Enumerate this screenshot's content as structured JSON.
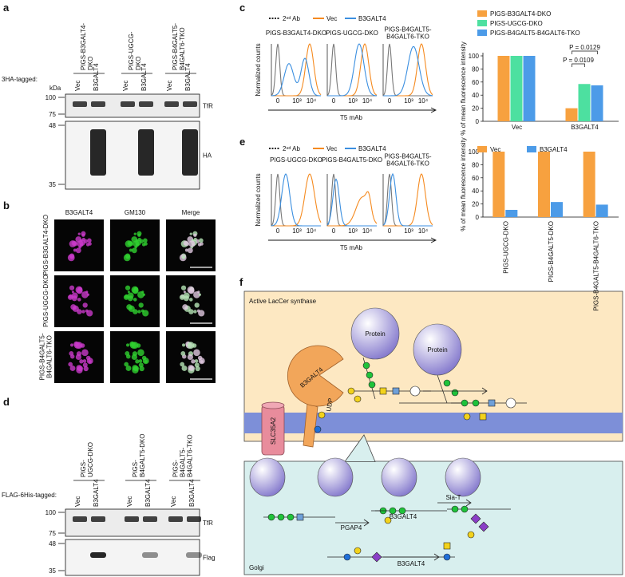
{
  "a": {
    "label": "a",
    "groups": [
      [
        "PIGS-B3GALT4-",
        "DKO"
      ],
      [
        "PIGS-UGCG-",
        "DKO"
      ],
      [
        "PIGS-B4GALT5-",
        "B4GALT6-TKO"
      ]
    ],
    "lanes": [
      "Vec",
      "B3GALT4",
      "Vec",
      "B3GALT4",
      "Vec",
      "B3GALT4"
    ],
    "tag": "3HA-tagged:",
    "unit": "kDa",
    "markers": [
      100,
      75,
      48,
      35
    ],
    "blots": [
      "TfR",
      "HA"
    ]
  },
  "b": {
    "label": "b",
    "columns": [
      "B3GALT4",
      "GM130",
      "Merge"
    ],
    "rows": [
      [
        "PIGS-B3GALT4-DKO"
      ],
      [
        "PIGS-UGCG-DKO"
      ],
      [
        "PIGS-B4GALT5-",
        "B4GALT6-TKO"
      ]
    ]
  },
  "c": {
    "label": "c",
    "legend": [
      "2ⁿᵈ Ab",
      "Vec",
      "B3GALT4"
    ],
    "legend_colors": [
      "#222222",
      "#f58a1f",
      "#3b8fe0"
    ],
    "plots": [
      [
        "PIGS-B3GALT4-DKO"
      ],
      [
        "PIGS-UGCG-DKO"
      ],
      [
        "PIGS-B4GALT5-",
        "B4GALT6-TKO"
      ]
    ],
    "ylabel": "Normalized counts",
    "xlabel": "T5 mAb",
    "xticks": [
      "0",
      "10³",
      "10⁴"
    ],
    "bars": {
      "categories": [
        "Vec",
        "B3GALT4"
      ],
      "series": [
        {
          "name": "PIGS-B3GALT4-DKO",
          "color": "#f7a13f",
          "values": [
            100,
            20
          ]
        },
        {
          "name": "PIGS-UGCG-DKO",
          "color": "#4de0a0",
          "values": [
            100,
            57
          ]
        },
        {
          "name": "PIGS-B4GALT5-B4GALT6-TKO",
          "color": "#4c9be8",
          "values": [
            100,
            55
          ]
        }
      ],
      "ylim": [
        0,
        100
      ],
      "yticks": [
        0,
        20,
        40,
        60,
        80,
        100
      ],
      "ylabel": "% of mean fluorescence intensity",
      "annotations": [
        "P = 0.0129",
        "P = 0.0109"
      ]
    }
  },
  "d": {
    "label": "d",
    "groups": [
      [
        "PIGS-",
        "UGCG-DKO"
      ],
      [
        "PIGS-",
        "B4GALT5-DKO"
      ],
      [
        "PIGS-",
        "B4GALT5-",
        "B4GALT6-TKO"
      ]
    ],
    "lanes": [
      "Vec",
      "B3GALT4",
      "Vec",
      "B3GALT4",
      "Vec",
      "B3GALT4"
    ],
    "tag": "FLAG-6His-tagged:",
    "markers": [
      100,
      75,
      48,
      35
    ],
    "blots": [
      "TfR",
      "Flag"
    ]
  },
  "e": {
    "label": "e",
    "legend": [
      "2ⁿᵈ Ab",
      "Vec",
      "B3GALT4"
    ],
    "legend_colors": [
      "#222222",
      "#f58a1f",
      "#3b8fe0"
    ],
    "plots": [
      [
        "PIGS-UGCG-DKO"
      ],
      [
        "PIGS-B4GALT5-DKO"
      ],
      [
        "PIGS-B4GALT5-",
        "B4GALT6-TKO"
      ]
    ],
    "ylabel": "Normalized counts",
    "xlabel": "T5 mAb",
    "xticks": [
      "0",
      "10³",
      "10⁴"
    ],
    "bars": {
      "categories": [
        "PIGS-UGCG-DKO",
        "PIGS-B4GALT5-DKO",
        "PIGS-B4GALT5-B4GALT6-TKO"
      ],
      "series": [
        {
          "name": "Vec",
          "color": "#f7a13f",
          "values": [
            100,
            100,
            100
          ]
        },
        {
          "name": "B3GALT4",
          "color": "#4c9be8",
          "values": [
            11,
            23,
            19
          ]
        }
      ],
      "ylim": [
        0,
        100
      ],
      "yticks": [
        0,
        20,
        40,
        60,
        80,
        100
      ],
      "ylabel": "% of mean fluorescence intensity"
    }
  },
  "f": {
    "label": "f",
    "title": "Active LacCer synthase",
    "proteins": [
      "Protein",
      "Protein"
    ],
    "enzyme": "B3GALT4",
    "udp": "UDP",
    "transporter": "SLC35A2",
    "steps": [
      "PGAP4",
      "B3GALT4",
      "Sia-T",
      "B3GALT4"
    ],
    "compartment": "Golgi"
  }
}
